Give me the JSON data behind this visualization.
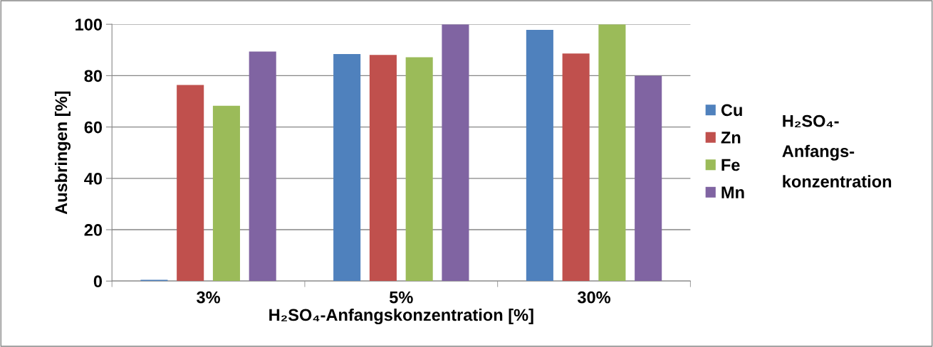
{
  "chart_data": {
    "type": "bar",
    "xlabel": "H₂SO₄-Anfangskonzentration [%]",
    "ylabel": "Ausbringen [%]",
    "legend_title": "H₂SO₄-\nAnfangs-\nkonzentration",
    "categories": [
      "3%",
      "5%",
      "30%"
    ],
    "series": [
      {
        "name": "Cu",
        "color": "#4f81bd",
        "values": [
          0.5,
          88.4,
          97.8
        ]
      },
      {
        "name": "Zn",
        "color": "#c0504d",
        "values": [
          76.4,
          88.1,
          88.6
        ]
      },
      {
        "name": "Fe",
        "color": "#9bbb59",
        "values": [
          68.3,
          87.2,
          100
        ]
      },
      {
        "name": "Mn",
        "color": "#8064a2",
        "values": [
          89.4,
          100,
          80
        ]
      }
    ],
    "ylim": [
      0,
      100
    ],
    "yticks": [
      0,
      20,
      40,
      60,
      80,
      100
    ],
    "grid": "y",
    "legend": "right"
  }
}
